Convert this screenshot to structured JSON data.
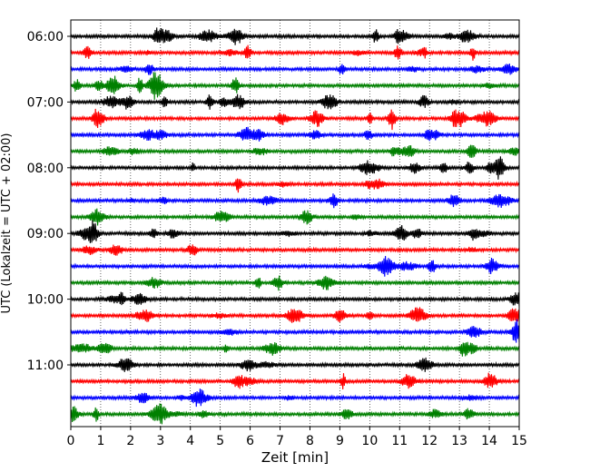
{
  "chart_data": {
    "type": "line",
    "title": "",
    "xlabel": "Zeit  [min]",
    "ylabel": "UTC (Lokalzeit = UTC + 02:00)",
    "xlim": [
      0,
      15
    ],
    "x_ticks": [
      "0",
      "1",
      "2",
      "3",
      "4",
      "5",
      "6",
      "7",
      "8",
      "9",
      "10",
      "11",
      "12",
      "13",
      "14",
      "15"
    ],
    "y_ticks": [
      "06:00",
      "07:00",
      "08:00",
      "09:00",
      "10:00",
      "11:00"
    ],
    "grid": "vertical dotted",
    "trace_colors": [
      "#000000",
      "#ff0000",
      "#0000ff",
      "#008000"
    ],
    "traces": [
      {
        "start": "06:00",
        "color": "#000000"
      },
      {
        "start": "06:15",
        "color": "#ff0000"
      },
      {
        "start": "06:30",
        "color": "#0000ff"
      },
      {
        "start": "06:45",
        "color": "#008000"
      },
      {
        "start": "07:00",
        "color": "#000000"
      },
      {
        "start": "07:15",
        "color": "#ff0000"
      },
      {
        "start": "07:30",
        "color": "#0000ff"
      },
      {
        "start": "07:45",
        "color": "#008000"
      },
      {
        "start": "08:00",
        "color": "#000000"
      },
      {
        "start": "08:15",
        "color": "#ff0000"
      },
      {
        "start": "08:30",
        "color": "#0000ff"
      },
      {
        "start": "08:45",
        "color": "#008000"
      },
      {
        "start": "09:00",
        "color": "#000000"
      },
      {
        "start": "09:15",
        "color": "#ff0000"
      },
      {
        "start": "09:30",
        "color": "#0000ff"
      },
      {
        "start": "09:45",
        "color": "#008000"
      },
      {
        "start": "10:00",
        "color": "#000000"
      },
      {
        "start": "10:15",
        "color": "#ff0000"
      },
      {
        "start": "10:30",
        "color": "#0000ff"
      },
      {
        "start": "10:45",
        "color": "#008000"
      },
      {
        "start": "11:00",
        "color": "#000000"
      },
      {
        "start": "11:15",
        "color": "#ff0000"
      },
      {
        "start": "11:30",
        "color": "#0000ff"
      },
      {
        "start": "11:45",
        "color": "#008000"
      }
    ]
  }
}
